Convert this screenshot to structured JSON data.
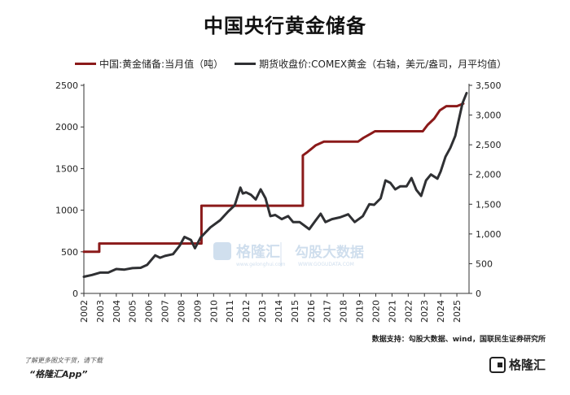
{
  "title": "中国央行黄金储备",
  "source": "数据支持：勾股大数据、wind，国联民生证券研究所",
  "footer": {
    "promo_line": "了解更多图文干货，请下载",
    "app_name": "“格隆汇App”",
    "brand": "格隆汇"
  },
  "watermarks": {
    "brand": "格隆汇",
    "brand_url": "www.gelonghui.com",
    "partner": "勾股大数据",
    "partner_url": "WWW.GOGUDATA.COM"
  },
  "colors": {
    "reserves": "#8b1a1a",
    "gold": "#2f3033"
  },
  "chart_data": {
    "type": "line",
    "x_labels": [
      "2002",
      "2003",
      "2004",
      "2005",
      "2006",
      "2007",
      "2008",
      "2009",
      "2010",
      "2011",
      "2012",
      "2013",
      "2014",
      "2015",
      "2016",
      "2017",
      "2018",
      "2019",
      "2020",
      "2021",
      "2022",
      "2023",
      "2024",
      "2025"
    ],
    "xlim": [
      2002.0,
      2025.75
    ],
    "y_left": {
      "ylim": [
        0,
        2500
      ],
      "ticks": [
        "0",
        "500",
        "1000",
        "1500",
        "2000",
        "2500"
      ]
    },
    "y_right": {
      "ylim": [
        0,
        3500
      ],
      "ticks": [
        "0",
        "500",
        "1,000",
        "1,500",
        "2,000",
        "2,500",
        "3,000",
        "3,500"
      ]
    },
    "series": [
      {
        "name": "中国:黄金储备:当月值（吨）",
        "axis": "left",
        "color": "#8b1a1a",
        "points": [
          [
            2002.0,
            500
          ],
          [
            2002.95,
            500
          ],
          [
            2002.95,
            600
          ],
          [
            2009.25,
            600
          ],
          [
            2009.25,
            1054
          ],
          [
            2015.5,
            1054
          ],
          [
            2015.5,
            1658
          ],
          [
            2015.8,
            1700
          ],
          [
            2016.3,
            1780
          ],
          [
            2016.8,
            1823
          ],
          [
            2018.9,
            1823
          ],
          [
            2019.25,
            1870
          ],
          [
            2019.7,
            1920
          ],
          [
            2019.95,
            1948
          ],
          [
            2022.9,
            1948
          ],
          [
            2023.2,
            2025
          ],
          [
            2023.6,
            2100
          ],
          [
            2023.95,
            2200
          ],
          [
            2024.35,
            2250
          ],
          [
            2025.0,
            2250
          ],
          [
            2025.4,
            2280
          ]
        ]
      },
      {
        "name": "期货收盘价:COMEX黄金（右轴，美元/盎司，月平均值）",
        "axis": "right",
        "color": "#2f3033",
        "points": [
          [
            2002.0,
            280
          ],
          [
            2002.5,
            310
          ],
          [
            2003.0,
            350
          ],
          [
            2003.5,
            350
          ],
          [
            2004.0,
            410
          ],
          [
            2004.5,
            400
          ],
          [
            2005.0,
            425
          ],
          [
            2005.5,
            430
          ],
          [
            2005.9,
            480
          ],
          [
            2006.4,
            640
          ],
          [
            2006.7,
            600
          ],
          [
            2007.0,
            630
          ],
          [
            2007.5,
            660
          ],
          [
            2007.9,
            800
          ],
          [
            2008.2,
            950
          ],
          [
            2008.6,
            900
          ],
          [
            2008.85,
            760
          ],
          [
            2009.2,
            940
          ],
          [
            2009.8,
            1110
          ],
          [
            2010.4,
            1230
          ],
          [
            2010.9,
            1380
          ],
          [
            2011.3,
            1480
          ],
          [
            2011.65,
            1780
          ],
          [
            2011.8,
            1680
          ],
          [
            2012.0,
            1700
          ],
          [
            2012.3,
            1660
          ],
          [
            2012.6,
            1580
          ],
          [
            2012.9,
            1750
          ],
          [
            2013.2,
            1600
          ],
          [
            2013.5,
            1300
          ],
          [
            2013.8,
            1320
          ],
          [
            2014.2,
            1250
          ],
          [
            2014.6,
            1300
          ],
          [
            2014.9,
            1200
          ],
          [
            2015.3,
            1200
          ],
          [
            2015.9,
            1080
          ],
          [
            2016.3,
            1230
          ],
          [
            2016.6,
            1340
          ],
          [
            2016.9,
            1200
          ],
          [
            2017.3,
            1250
          ],
          [
            2017.8,
            1280
          ],
          [
            2018.3,
            1330
          ],
          [
            2018.7,
            1200
          ],
          [
            2019.2,
            1300
          ],
          [
            2019.6,
            1500
          ],
          [
            2019.9,
            1490
          ],
          [
            2020.3,
            1600
          ],
          [
            2020.6,
            1900
          ],
          [
            2020.9,
            1860
          ],
          [
            2021.2,
            1750
          ],
          [
            2021.5,
            1800
          ],
          [
            2021.9,
            1800
          ],
          [
            2022.2,
            1940
          ],
          [
            2022.5,
            1740
          ],
          [
            2022.8,
            1640
          ],
          [
            2023.1,
            1900
          ],
          [
            2023.4,
            2000
          ],
          [
            2023.8,
            1930
          ],
          [
            2024.0,
            2050
          ],
          [
            2024.3,
            2300
          ],
          [
            2024.6,
            2450
          ],
          [
            2024.9,
            2650
          ],
          [
            2025.1,
            2900
          ],
          [
            2025.35,
            3200
          ],
          [
            2025.6,
            3370
          ]
        ]
      }
    ]
  }
}
